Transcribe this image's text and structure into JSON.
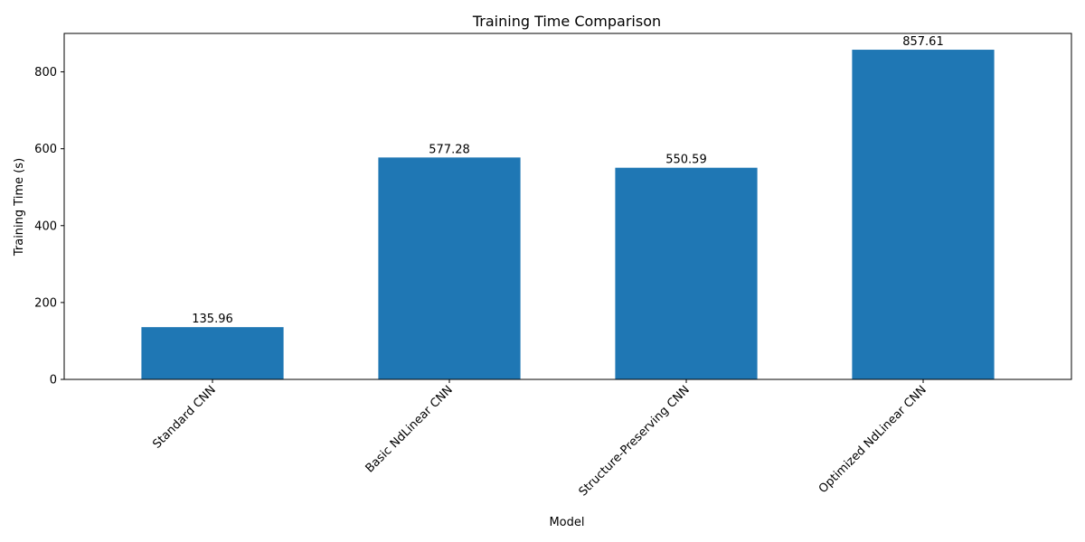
{
  "chart_data": {
    "type": "bar",
    "title": "Training Time Comparison",
    "xlabel": "Model",
    "ylabel": "Training Time (s)",
    "categories": [
      "Standard CNN",
      "Basic NdLinear CNN",
      "Structure-Preserving CNN",
      "Optimized NdLinear CNN"
    ],
    "values": [
      135.96,
      577.28,
      550.59,
      857.61
    ],
    "data_labels": [
      "135.96",
      "577.28",
      "550.59",
      "857.61"
    ],
    "ylim": [
      0,
      900
    ],
    "yticks": [
      0,
      200,
      400,
      600,
      800
    ],
    "ytick_labels": [
      "0",
      "200",
      "400",
      "600",
      "800"
    ],
    "grid": false,
    "bar_color": "#1f77b4",
    "xtick_rotation_deg": 45
  }
}
